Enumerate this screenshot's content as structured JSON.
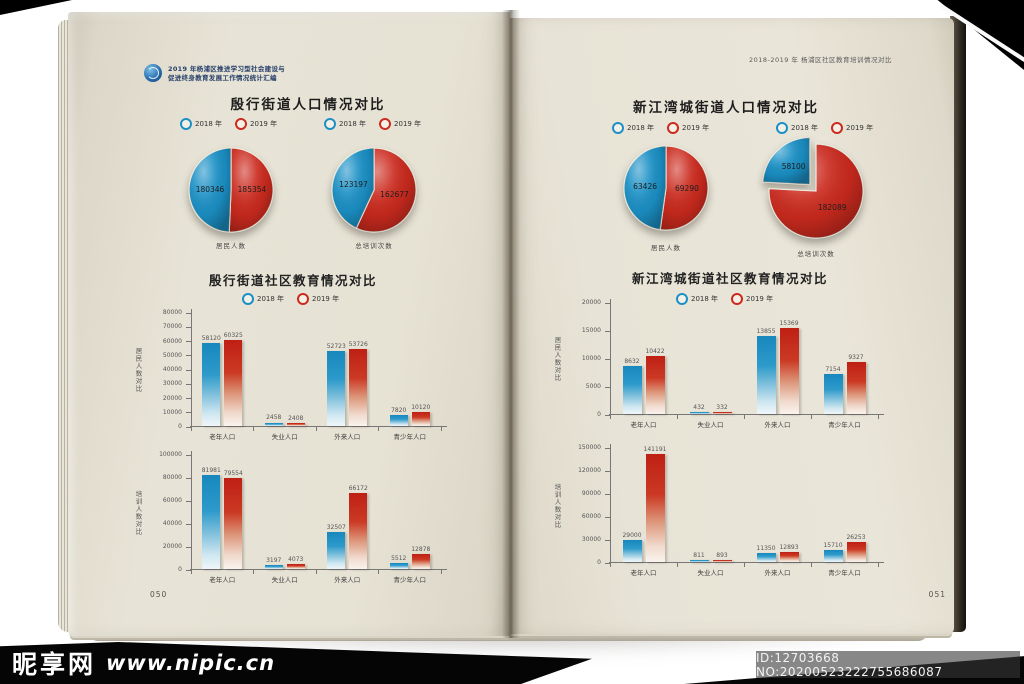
{
  "legend": {
    "y2018": "2018 年",
    "y2019": "2019 年"
  },
  "colors": {
    "blue": "#1b90c5",
    "red": "#cb2a1e"
  },
  "watermark": {
    "site_name": "昵享网",
    "site_url": "www.nipic.cn",
    "id_line": "ID:12703668 NO:20200523222755686087"
  },
  "left_page": {
    "header_line1": "2019 年杨浦区推进学习型社会建设与",
    "header_line2": "促进终身教育发展工作情况统计汇编",
    "population_title": "殷行街道人口情况对比",
    "education_title": "殷行街道社区教育情况对比",
    "page_number": "050"
  },
  "right_page": {
    "header": "2018-2019 年 杨浦区社区教育培训情况对比",
    "population_title": "新江湾城街道人口情况对比",
    "education_title": "新江湾城街道社区教育情况对比",
    "page_number": "051"
  },
  "chart_data": [
    {
      "id": "pie-yinhang-residents",
      "type": "pie",
      "title": "殷行街道人口情况对比",
      "label": "居民人数",
      "legend": [
        "2018 年",
        "2019 年"
      ],
      "slices": [
        {
          "name": "2019 年",
          "value": 185354,
          "color": "red"
        },
        {
          "name": "2018 年",
          "value": 180346,
          "color": "blue"
        }
      ]
    },
    {
      "id": "pie-yinhang-trainings",
      "type": "pie",
      "title": "殷行街道人口情况对比",
      "label": "总培训次数",
      "legend": [
        "2018 年",
        "2019 年"
      ],
      "slices": [
        {
          "name": "2019 年",
          "value": 162677,
          "color": "red"
        },
        {
          "name": "2018 年",
          "value": 123197,
          "color": "blue"
        }
      ]
    },
    {
      "id": "bar-yinhang-residents",
      "type": "bar",
      "title": "殷行街道社区教育情况对比",
      "ylabel": "居民人数对比",
      "ylim": [
        0,
        80000
      ],
      "ystep": 10000,
      "categories": [
        "老年人口",
        "失业人口",
        "外来人口",
        "青少年人口"
      ],
      "series": [
        {
          "name": "2018 年",
          "color": "blue",
          "values": [
            58120,
            2458,
            52723,
            7820
          ]
        },
        {
          "name": "2019 年",
          "color": "red",
          "values": [
            60325,
            2408,
            53726,
            10120
          ]
        }
      ]
    },
    {
      "id": "bar-yinhang-trainings",
      "type": "bar",
      "title": "殷行街道社区教育情况对比",
      "ylabel": "培训人数对比",
      "ylim": [
        0,
        100000
      ],
      "ystep": 20000,
      "categories": [
        "老年人口",
        "失业人口",
        "外来人口",
        "青少年人口"
      ],
      "series": [
        {
          "name": "2018 年",
          "color": "blue",
          "values": [
            81981,
            3197,
            32507,
            5512
          ]
        },
        {
          "name": "2019 年",
          "color": "red",
          "values": [
            79554,
            4073,
            66172,
            12878
          ]
        }
      ]
    },
    {
      "id": "pie-xinjiangwan-residents",
      "type": "pie",
      "title": "新江湾城街道人口情况对比",
      "label": "居民人数",
      "legend": [
        "2018 年",
        "2019 年"
      ],
      "slices": [
        {
          "name": "2019 年",
          "value": 69290,
          "color": "red"
        },
        {
          "name": "2018 年",
          "value": 63426,
          "color": "blue"
        }
      ]
    },
    {
      "id": "pie-xinjiangwan-trainings",
      "type": "pie",
      "title": "新江湾城街道人口情况对比",
      "label": "总培训次数",
      "legend": [
        "2018 年",
        "2019 年"
      ],
      "explode_index": 1,
      "slices": [
        {
          "name": "2019 年",
          "value": 182089,
          "color": "red"
        },
        {
          "name": "2018 年",
          "value": 58100,
          "color": "blue"
        }
      ]
    },
    {
      "id": "bar-xinjiangwan-residents",
      "type": "bar",
      "title": "新江湾城街道社区教育情况对比",
      "ylabel": "居民人数对比",
      "ylim": [
        0,
        20000
      ],
      "ystep": 5000,
      "categories": [
        "老年人口",
        "失业人口",
        "外来人口",
        "青少年人口"
      ],
      "series": [
        {
          "name": "2018 年",
          "color": "blue",
          "values": [
            8632,
            432,
            13855,
            7154
          ]
        },
        {
          "name": "2019 年",
          "color": "red",
          "values": [
            10422,
            332,
            15369,
            9327
          ]
        }
      ]
    },
    {
      "id": "bar-xinjiangwan-trainings",
      "type": "bar",
      "title": "新江湾城街道社区教育情况对比",
      "ylabel": "培训人数对比",
      "ylim": [
        0,
        150000
      ],
      "ystep": 30000,
      "categories": [
        "老年人口",
        "失业人口",
        "外来人口",
        "青少年人口"
      ],
      "series": [
        {
          "name": "2018 年",
          "color": "blue",
          "values": [
            29000,
            811,
            11350,
            15710
          ]
        },
        {
          "name": "2019 年",
          "color": "red",
          "values": [
            141191,
            893,
            12893,
            26253
          ]
        }
      ]
    }
  ]
}
